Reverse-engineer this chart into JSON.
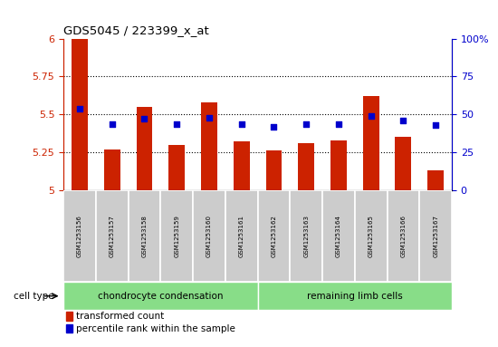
{
  "title": "GDS5045 / 223399_x_at",
  "samples": [
    "GSM1253156",
    "GSM1253157",
    "GSM1253158",
    "GSM1253159",
    "GSM1253160",
    "GSM1253161",
    "GSM1253162",
    "GSM1253163",
    "GSM1253164",
    "GSM1253165",
    "GSM1253166",
    "GSM1253167"
  ],
  "bar_values": [
    6.0,
    5.27,
    5.55,
    5.3,
    5.58,
    5.32,
    5.26,
    5.31,
    5.33,
    5.62,
    5.35,
    5.13
  ],
  "dot_values": [
    5.535,
    5.435,
    5.47,
    5.435,
    5.475,
    5.435,
    5.415,
    5.435,
    5.435,
    5.49,
    5.46,
    5.43
  ],
  "ylim_left": [
    5.0,
    6.0
  ],
  "ylim_right": [
    0,
    100
  ],
  "yticks_left": [
    5.0,
    5.25,
    5.5,
    5.75,
    6.0
  ],
  "ytick_labels_left": [
    "5",
    "5.25",
    "5.5",
    "5.75",
    "6"
  ],
  "yticks_right": [
    0,
    25,
    50,
    75,
    100
  ],
  "ytick_labels_right": [
    "0",
    "25",
    "50",
    "75",
    "100%"
  ],
  "bar_color": "#cc2200",
  "dot_color": "#0000cc",
  "bar_width": 0.5,
  "group1_label": "chondrocyte condensation",
  "group2_label": "remaining limb cells",
  "group1_count": 6,
  "group2_count": 6,
  "cell_type_label": "cell type",
  "legend_bar_label": "transformed count",
  "legend_dot_label": "percentile rank within the sample",
  "cell_bg_color": "#cccccc",
  "group_color": "#88dd88",
  "background_color": "#ffffff",
  "yaxis_left_color": "#cc2200",
  "yaxis_right_color": "#0000cc",
  "dot_size": 15
}
